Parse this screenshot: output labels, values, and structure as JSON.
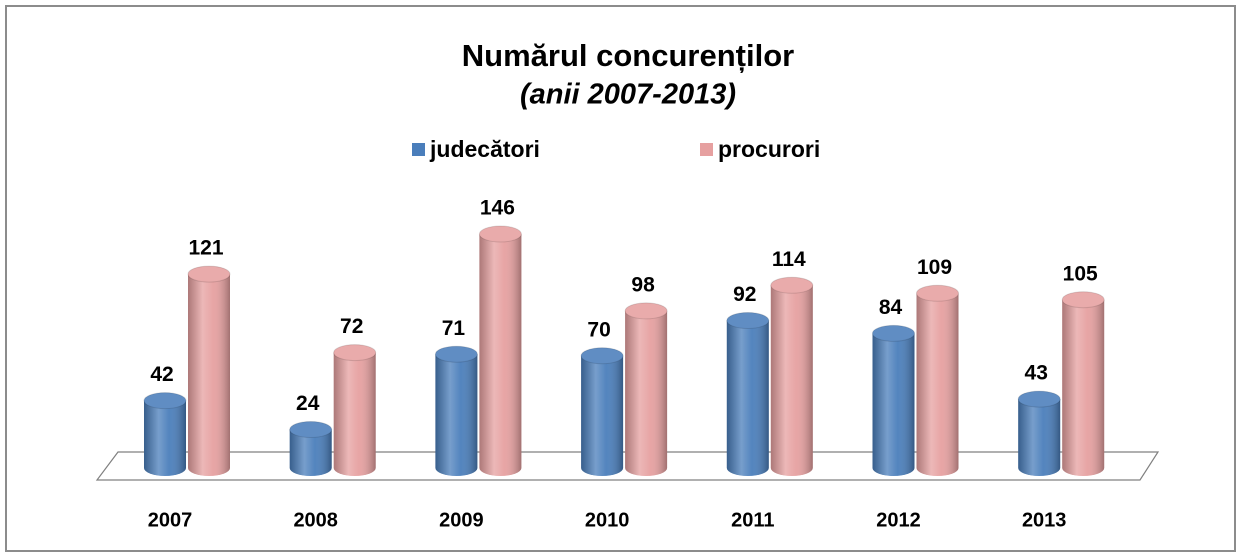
{
  "chart_data": {
    "type": "bar3d",
    "title": "Numărul concurenților",
    "subtitle": "(anii 2007-2013)",
    "categories": [
      "2007",
      "2008",
      "2009",
      "2010",
      "2011",
      "2012",
      "2013"
    ],
    "series": [
      {
        "name": "judecători",
        "color": "#4a7ebb",
        "values": [
          42,
          24,
          71,
          70,
          92,
          84,
          43
        ]
      },
      {
        "name": "procurori",
        "color": "#e6a0a0",
        "values": [
          121,
          72,
          146,
          98,
          114,
          109,
          105
        ]
      }
    ]
  }
}
